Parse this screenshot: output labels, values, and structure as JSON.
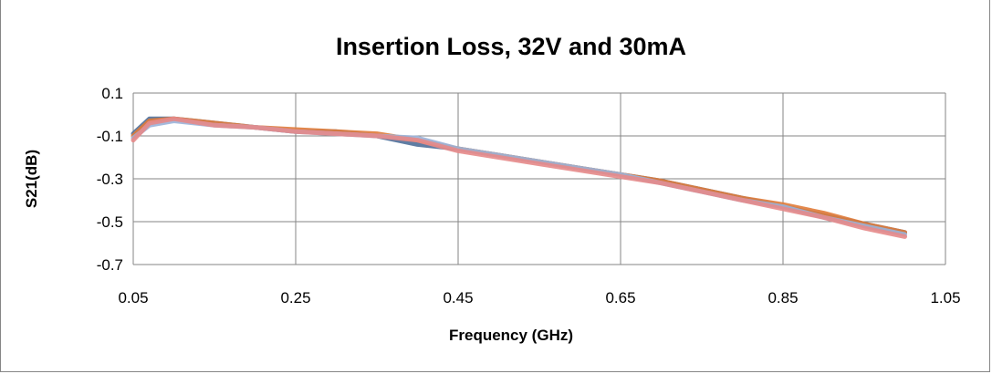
{
  "chart_data": {
    "type": "line",
    "title": "Insertion Loss, 32V and 30mA",
    "xlabel": "Frequency (GHz)",
    "ylabel": "S21(dB)",
    "xlim": [
      0.05,
      1.05
    ],
    "ylim": [
      -0.7,
      0.1
    ],
    "x_ticks": [
      "0.05",
      "0.25",
      "0.45",
      "0.65",
      "0.85",
      "1.05"
    ],
    "y_ticks": [
      "0.1",
      "-0.1",
      "-0.3",
      "-0.5",
      "-0.7"
    ],
    "grid": true,
    "legend": "none",
    "x": [
      0.05,
      0.07,
      0.1,
      0.15,
      0.2,
      0.25,
      0.3,
      0.35,
      0.4,
      0.45,
      0.5,
      0.55,
      0.6,
      0.65,
      0.7,
      0.75,
      0.8,
      0.85,
      0.9,
      0.95,
      1.0
    ],
    "series": [
      {
        "color": "#4f6f99",
        "values": [
          -0.09,
          -0.02,
          -0.02,
          -0.04,
          -0.06,
          -0.08,
          -0.08,
          -0.1,
          -0.14,
          -0.16,
          -0.19,
          -0.22,
          -0.25,
          -0.28,
          -0.31,
          -0.35,
          -0.39,
          -0.43,
          -0.47,
          -0.51,
          -0.55
        ]
      },
      {
        "color": "#e07b39",
        "values": [
          -0.1,
          -0.03,
          -0.02,
          -0.04,
          -0.06,
          -0.07,
          -0.08,
          -0.09,
          -0.12,
          -0.16,
          -0.19,
          -0.22,
          -0.25,
          -0.28,
          -0.31,
          -0.35,
          -0.39,
          -0.42,
          -0.46,
          -0.51,
          -0.55
        ]
      },
      {
        "color": "#9ab3d9",
        "values": [
          -0.11,
          -0.05,
          -0.03,
          -0.05,
          -0.06,
          -0.08,
          -0.09,
          -0.1,
          -0.11,
          -0.16,
          -0.19,
          -0.22,
          -0.25,
          -0.28,
          -0.32,
          -0.36,
          -0.4,
          -0.43,
          -0.48,
          -0.52,
          -0.56
        ]
      },
      {
        "color": "#e58a8a",
        "values": [
          -0.12,
          -0.04,
          -0.02,
          -0.05,
          -0.06,
          -0.08,
          -0.09,
          -0.1,
          -0.12,
          -0.17,
          -0.2,
          -0.23,
          -0.26,
          -0.29,
          -0.32,
          -0.36,
          -0.4,
          -0.44,
          -0.48,
          -0.53,
          -0.57
        ]
      }
    ]
  }
}
